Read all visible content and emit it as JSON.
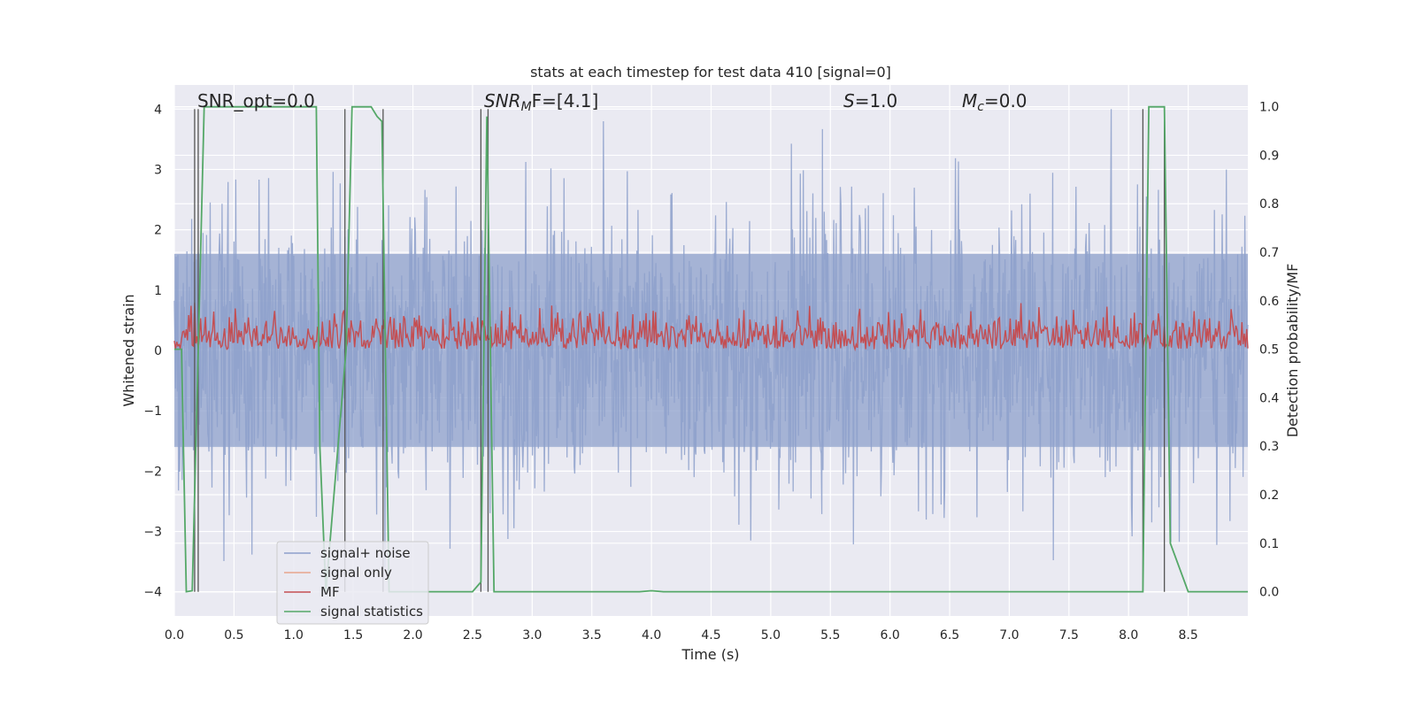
{
  "chart_data": {
    "type": "line",
    "title": "stats at each timestep for test data 410 [signal=0]",
    "xlabel": "Time (s)",
    "ylabel": "Whitened strain",
    "ylabel_right": "Detection probability/MF",
    "xlim": [
      0,
      9
    ],
    "ylim": [
      -4.4,
      4.4
    ],
    "ylim_right": [
      -0.05,
      1.045
    ],
    "x_ticks": [
      "0.0",
      "0.5",
      "1.0",
      "1.5",
      "2.0",
      "2.5",
      "3.0",
      "3.5",
      "4.0",
      "4.5",
      "5.0",
      "5.5",
      "6.0",
      "6.5",
      "7.0",
      "7.5",
      "8.0",
      "8.5"
    ],
    "y_ticks": [
      "4",
      "3",
      "2",
      "1",
      "0",
      "−1",
      "−2",
      "−3",
      "−4"
    ],
    "y_ticks_right": [
      "1.0",
      "0.9",
      "0.8",
      "0.7",
      "0.6",
      "0.5",
      "0.4",
      "0.3",
      "0.2",
      "0.1",
      "0.0"
    ],
    "grid": true,
    "legend_position": "lower-left",
    "annotations": [
      {
        "text": "SNR_opt=0.0",
        "x": 0.2
      },
      {
        "text": "SNR",
        "sub": "M",
        "rest": "F=[4.1]",
        "x": 2.6
      },
      {
        "text": "S=1.0",
        "x": 5.6
      },
      {
        "text": "M",
        "sub": "c",
        "rest": "=0.0",
        "x": 6.6
      }
    ],
    "vertical_lines_x": [
      0.17,
      0.2,
      1.43,
      1.75,
      2.57,
      2.63,
      8.12,
      8.3
    ],
    "series": [
      {
        "name": "signal+ noise",
        "color": "#8da0cb",
        "description_amplitude": "noise spanning roughly -4 to 4, concentrated within ±2",
        "range": [
          -4.0,
          4.0
        ]
      },
      {
        "name": "signal only",
        "color": "#e8a58c",
        "values": []
      },
      {
        "name": "MF",
        "color": "#c44e52",
        "range": [
          0.5,
          0.63
        ]
      },
      {
        "name": "signal statistics",
        "color": "#55a868",
        "x": [
          0.0,
          0.06,
          0.1,
          0.15,
          0.2,
          0.25,
          1.0,
          1.19,
          1.22,
          1.27,
          1.44,
          1.49,
          1.65,
          1.7,
          1.74,
          1.8,
          1.9,
          2.5,
          2.57,
          2.62,
          2.68,
          3.9,
          4.0,
          4.1,
          8.12,
          8.17,
          8.3,
          8.35,
          8.5,
          9.0
        ],
        "values": [
          0.5,
          0.5,
          0.0,
          0.002,
          0.5,
          1.0,
          1.0,
          1.0,
          0.3,
          0.0,
          0.5,
          1.0,
          1.0,
          0.98,
          0.97,
          0.0,
          0.0,
          0.0,
          0.02,
          0.98,
          0.0,
          0.0,
          0.002,
          0.0,
          0.0,
          1.0,
          1.0,
          0.1,
          0.0,
          0.0
        ]
      }
    ]
  }
}
